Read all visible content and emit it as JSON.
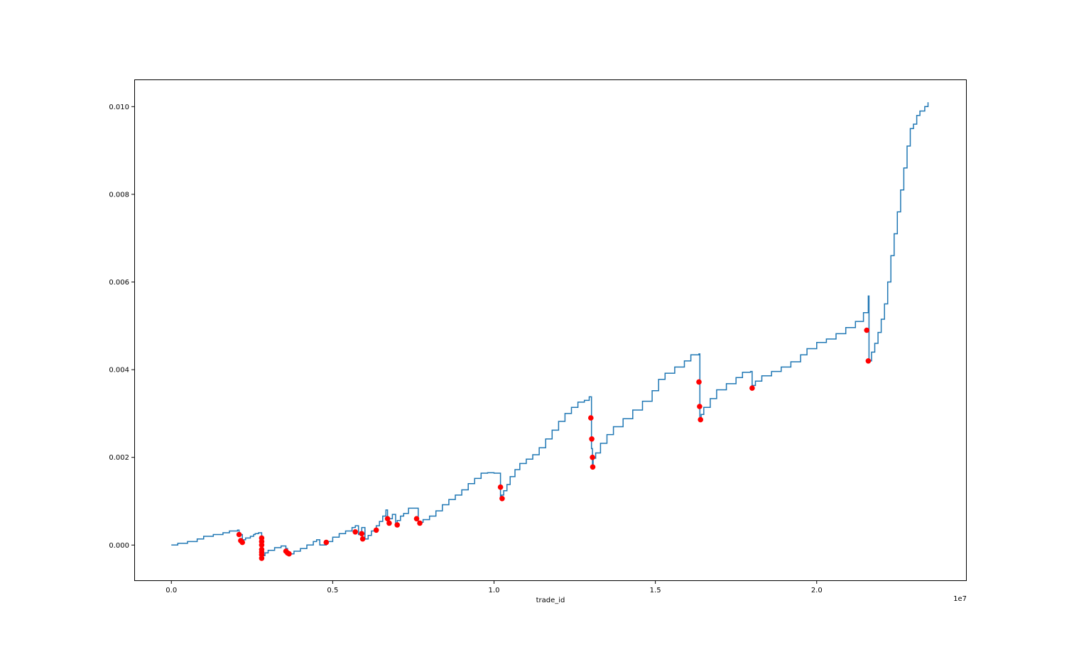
{
  "chart_data": {
    "type": "line",
    "title": "",
    "xlabel": "trade_id",
    "ylabel": "",
    "x_offset_text": "1e7",
    "xlim": [
      -1150000,
      24650000
    ],
    "ylim": [
      -0.00082,
      0.01062
    ],
    "x_ticks": [
      0,
      5000000,
      10000000,
      15000000,
      20000000
    ],
    "x_tick_labels": [
      "0.0",
      "0.5",
      "1.0",
      "1.5",
      "2.0"
    ],
    "y_ticks": [
      0,
      0.002,
      0.004,
      0.006,
      0.008,
      0.01
    ],
    "y_tick_labels": [
      "0.000",
      "0.002",
      "0.004",
      "0.006",
      "0.008",
      "0.010"
    ],
    "grid": false,
    "colors": {
      "line": "#1f77b4",
      "markers": "#ff0000"
    },
    "series": [
      {
        "style": "step-line",
        "x": [
          0,
          200000,
          500000,
          800000,
          1000000,
          1300000,
          1600000,
          1800000,
          2050000,
          2100000,
          2200000,
          2300000,
          2450000,
          2550000,
          2600000,
          2700000,
          2800000,
          2820000,
          2900000,
          3000000,
          3200000,
          3400000,
          3550000,
          3600000,
          3650000,
          3800000,
          4000000,
          4200000,
          4400000,
          4500000,
          4600000,
          4800000,
          5000000,
          5200000,
          5400000,
          5600000,
          5700000,
          5800000,
          5850000,
          5900000,
          6000000,
          6100000,
          6200000,
          6350000,
          6450000,
          6550000,
          6650000,
          6700000,
          6750000,
          6850000,
          6950000,
          7000000,
          7100000,
          7200000,
          7350000,
          7600000,
          7650000,
          7700000,
          7800000,
          8000000,
          8200000,
          8400000,
          8600000,
          8800000,
          9000000,
          9200000,
          9400000,
          9600000,
          9800000,
          10000000,
          10200000,
          10230000,
          10300000,
          10400000,
          10500000,
          10650000,
          10800000,
          11000000,
          11200000,
          11400000,
          11600000,
          11800000,
          12000000,
          12200000,
          12400000,
          12600000,
          12800000,
          12950000,
          13020000,
          13050000,
          13070000,
          13150000,
          13300000,
          13500000,
          13700000,
          14000000,
          14300000,
          14600000,
          14900000,
          15100000,
          15300000,
          15600000,
          15900000,
          16100000,
          16350000,
          16380000,
          16420000,
          16500000,
          16700000,
          16900000,
          17200000,
          17500000,
          17700000,
          17950000,
          18000000,
          18100000,
          18300000,
          18600000,
          18900000,
          19200000,
          19500000,
          19700000,
          20000000,
          20300000,
          20600000,
          20900000,
          21200000,
          21450000,
          21600000,
          21620000,
          21700000,
          21800000,
          21900000,
          22000000,
          22100000,
          22200000,
          22300000,
          22400000,
          22500000,
          22600000,
          22700000,
          22800000,
          22900000,
          23000000,
          23100000,
          23200000,
          23350000,
          23450000
        ],
        "y": [
          0.0,
          4e-05,
          8e-05,
          0.00014,
          0.0002,
          0.00024,
          0.00028,
          0.00032,
          0.00034,
          0.00024,
          0.00012,
          0.00016,
          0.0002,
          0.00024,
          0.00026,
          0.00028,
          8e-05,
          -0.00024,
          -0.00018,
          -0.00012,
          -6e-05,
          -2e-05,
          -8e-05,
          -0.00018,
          -0.0002,
          -0.00014,
          -8e-05,
          0.0,
          8e-05,
          0.00012,
          0.0,
          8e-05,
          0.00018,
          0.00026,
          0.00032,
          0.0004,
          0.00044,
          0.00024,
          0.0003,
          0.0004,
          0.00014,
          0.00022,
          0.00032,
          0.00044,
          0.00054,
          0.00066,
          0.0008,
          0.00056,
          0.0006,
          0.0007,
          0.00046,
          0.00056,
          0.00066,
          0.00072,
          0.00084,
          0.00084,
          0.00048,
          0.00052,
          0.00058,
          0.00066,
          0.00078,
          0.00092,
          0.00104,
          0.00114,
          0.00126,
          0.0014,
          0.00152,
          0.00164,
          0.00165,
          0.00164,
          0.00106,
          0.00114,
          0.00124,
          0.00138,
          0.00156,
          0.00172,
          0.00186,
          0.00196,
          0.00206,
          0.00222,
          0.00242,
          0.00262,
          0.00282,
          0.003,
          0.00314,
          0.00326,
          0.0033,
          0.00338,
          0.0022,
          0.00176,
          0.00198,
          0.0021,
          0.00232,
          0.00252,
          0.0027,
          0.00288,
          0.00308,
          0.00328,
          0.00352,
          0.00378,
          0.00392,
          0.00406,
          0.0042,
          0.00434,
          0.00436,
          0.00284,
          0.00298,
          0.00314,
          0.00334,
          0.00354,
          0.00368,
          0.00382,
          0.00394,
          0.00396,
          0.00364,
          0.00374,
          0.00386,
          0.00396,
          0.00406,
          0.00418,
          0.00434,
          0.00448,
          0.00462,
          0.0047,
          0.00482,
          0.00496,
          0.0051,
          0.0053,
          0.00568,
          0.0042,
          0.0044,
          0.0046,
          0.00485,
          0.00515,
          0.0055,
          0.006,
          0.0066,
          0.0071,
          0.0076,
          0.0081,
          0.0086,
          0.0091,
          0.0095,
          0.0096,
          0.0098,
          0.0099,
          0.01,
          0.0101
        ]
      },
      {
        "style": "markers",
        "x": [
          2100000,
          2150000,
          2200000,
          2800000,
          2800000,
          2800000,
          2800000,
          2800000,
          2800000,
          2800000,
          3550000,
          3600000,
          3650000,
          4800000,
          5700000,
          5900000,
          5930000,
          6350000,
          6700000,
          6750000,
          7000000,
          7600000,
          7700000,
          10200000,
          10250000,
          13000000,
          13030000,
          13050000,
          13060000,
          16350000,
          16370000,
          16400000,
          18000000,
          21550000,
          21600000
        ],
        "y": [
          0.00024,
          0.0001,
          6e-05,
          0.00016,
          8e-05,
          0.0,
          -0.0001,
          -0.00016,
          -0.00022,
          -0.0003,
          -0.00014,
          -0.00018,
          -0.0002,
          6e-05,
          0.0003,
          0.00026,
          0.00014,
          0.00034,
          0.0006,
          0.0005,
          0.00046,
          0.0006,
          0.0005,
          0.00132,
          0.00106,
          0.0029,
          0.00242,
          0.002,
          0.00178,
          0.00372,
          0.00316,
          0.00286,
          0.00358,
          0.0049,
          0.0042
        ]
      }
    ]
  }
}
